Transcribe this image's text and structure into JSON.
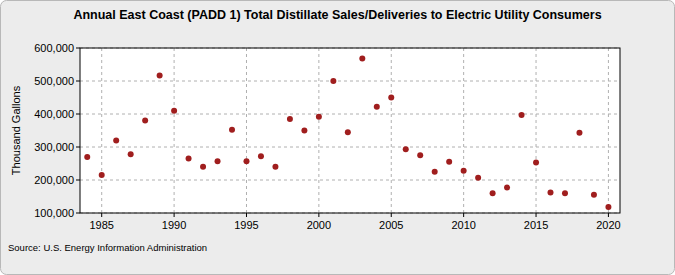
{
  "chart_data": {
    "type": "scatter",
    "title": "Annual East Coast (PADD 1) Total Distillate Sales/Deliveries to Electric Utility Consumers",
    "y_label": "Thousand Gallons",
    "source": "Source: U.S. Energy Information Administration",
    "x": [
      1984,
      1985,
      1986,
      1987,
      1988,
      1989,
      1990,
      1991,
      1992,
      1993,
      1994,
      1995,
      1996,
      1997,
      1998,
      1999,
      2000,
      2001,
      2002,
      2003,
      2004,
      2005,
      2006,
      2007,
      2008,
      2009,
      2010,
      2011,
      2012,
      2013,
      2014,
      2015,
      2016,
      2017,
      2018,
      2019,
      2020
    ],
    "values": [
      270000,
      215000,
      320000,
      278000,
      380000,
      517000,
      410000,
      265000,
      240000,
      257000,
      352000,
      257000,
      272000,
      240000,
      385000,
      350000,
      392000,
      500000,
      345000,
      568000,
      422000,
      450000,
      293000,
      275000,
      225000,
      255000,
      228000,
      207000,
      160000,
      177000,
      397000,
      253000,
      162000,
      160000,
      343000,
      155000,
      118000
    ],
    "color": "#a01e1e",
    "marker": "circle",
    "grid": true,
    "xlim": [
      1983.5,
      2020.8
    ],
    "xticks": [
      1985,
      1990,
      1995,
      2000,
      2005,
      2010,
      2015,
      2020
    ],
    "ylim": [
      100000,
      600000
    ],
    "yticks": [
      {
        "value": 100000,
        "label": "100,000"
      },
      {
        "value": 200000,
        "label": "200,000"
      },
      {
        "value": 300000,
        "label": "300,000"
      },
      {
        "value": 400000,
        "label": "400,000"
      },
      {
        "value": 500000,
        "label": "500,000"
      },
      {
        "value": 600000,
        "label": "600,000"
      }
    ]
  }
}
